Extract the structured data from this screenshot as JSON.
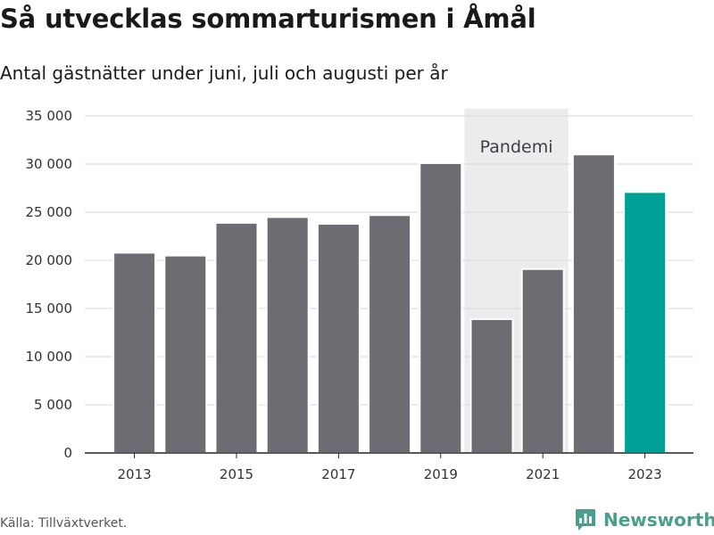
{
  "title": "Så utvecklas sommarturismen i Åmål",
  "subtitle": "Antal gästnätter under juni, juli och augusti per år",
  "source": "Källa: Tillväxtverket.",
  "brand": {
    "name": "Newsworthy",
    "icon": "newsworthy-logo-icon",
    "color": "#4a9e8c"
  },
  "chart_data": {
    "type": "bar",
    "title": "Så utvecklas sommarturismen i Åmål",
    "subtitle": "Antal gästnätter under juni, juli och augusti per år",
    "xlabel": "",
    "ylabel": "",
    "categories": [
      "2013",
      "2014",
      "2015",
      "2016",
      "2017",
      "2018",
      "2019",
      "2020",
      "2021",
      "2022",
      "2023"
    ],
    "values": [
      20800,
      20500,
      23900,
      24500,
      23800,
      24700,
      30100,
      13900,
      19100,
      31000,
      27100
    ],
    "x_tick_labels": [
      "2013",
      "2015",
      "2017",
      "2019",
      "2021",
      "2023"
    ],
    "ylim": [
      0,
      35000
    ],
    "y_ticks": [
      0,
      5000,
      10000,
      15000,
      20000,
      25000,
      30000,
      35000
    ],
    "y_tick_labels": [
      "0",
      "5 000",
      "10 000",
      "15 000",
      "20 000",
      "25 000",
      "30 000",
      "35 000"
    ],
    "grid": true,
    "legend": "none",
    "bar_color": "#6d6c72",
    "highlight": {
      "category": "2023",
      "color": "#00a096"
    },
    "annotation": {
      "label": "Pandemi",
      "from": "2020",
      "to": "2021",
      "color": "#ececec"
    }
  }
}
